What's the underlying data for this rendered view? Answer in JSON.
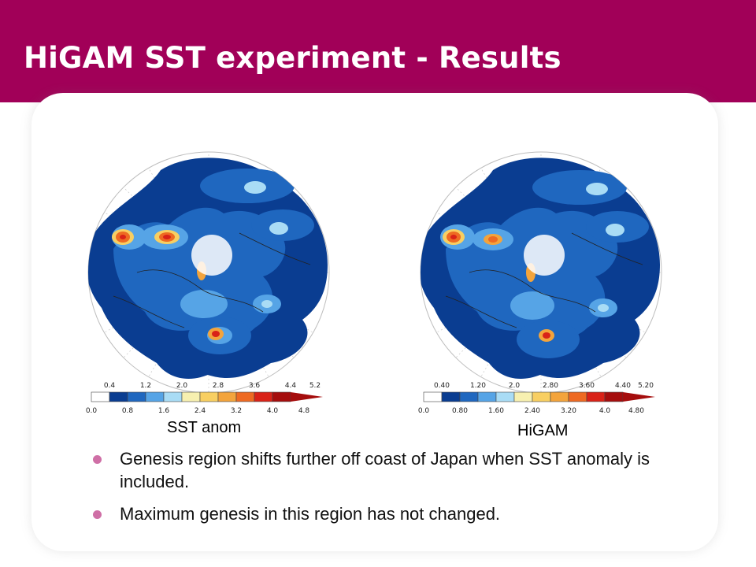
{
  "title": "HiGAM SST experiment - Results",
  "colors": {
    "header": "#a10058",
    "bullet": "#cf6fa6",
    "scale": [
      "#ffffff",
      "#0a3d91",
      "#1f67bf",
      "#56a4e6",
      "#a9dcf5",
      "#f7f0b0",
      "#f8cf62",
      "#f3a43c",
      "#ee6a22",
      "#d92218",
      "#a50d0d"
    ]
  },
  "chart_data": [
    {
      "type": "heatmap",
      "caption": "SST anom",
      "colorbar": {
        "upper_ticks": [
          "0.4",
          "1.2",
          "2.0",
          "2.8",
          "3.6",
          "4.4",
          "5.2"
        ],
        "lower_ticks": [
          "0.0",
          "0.8",
          "1.6",
          "2.4",
          "3.2",
          "4.0",
          "4.8"
        ]
      }
    },
    {
      "type": "heatmap",
      "caption": "HiGAM",
      "colorbar": {
        "upper_ticks": [
          "0.40",
          "1.20",
          "2.0",
          "2.80",
          "3.60",
          "4.40",
          "5.20"
        ],
        "lower_ticks": [
          "0.0",
          "0.80",
          "1.60",
          "2.40",
          "3.20",
          "4.0",
          "4.80"
        ]
      }
    }
  ],
  "bullets": [
    "Genesis region shifts further off coast of Japan when SST anomaly is included.",
    "Maximum genesis in this region has not changed."
  ]
}
